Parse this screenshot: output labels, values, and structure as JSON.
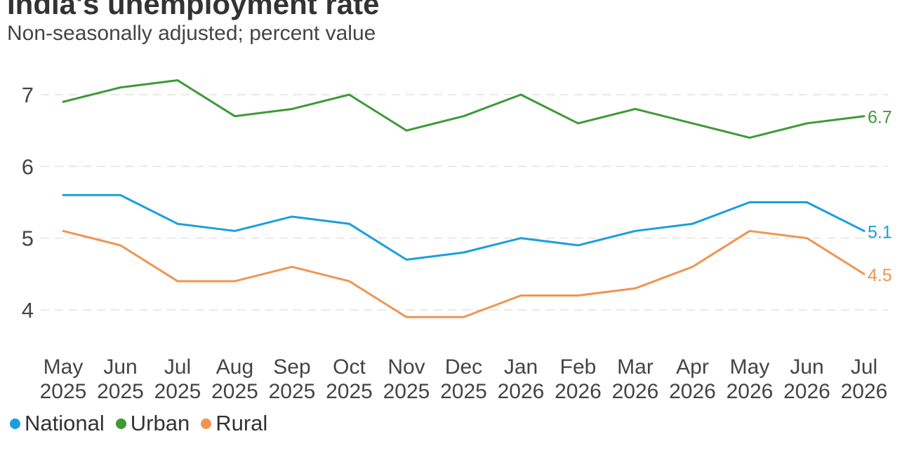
{
  "title": "India's unemployment rate",
  "subtitle": "Non-seasonally adjusted; percent value",
  "chart_data": {
    "type": "line",
    "categories": [
      [
        "May",
        "2025"
      ],
      [
        "Jun",
        "2025"
      ],
      [
        "Jul",
        "2025"
      ],
      [
        "Aug",
        "2025"
      ],
      [
        "Sep",
        "2025"
      ],
      [
        "Oct",
        "2025"
      ],
      [
        "Nov",
        "2025"
      ],
      [
        "Dec",
        "2025"
      ],
      [
        "Jan",
        "2026"
      ],
      [
        "Feb",
        "2026"
      ],
      [
        "Mar",
        "2026"
      ],
      [
        "Apr",
        "2026"
      ],
      [
        "May",
        "2026"
      ],
      [
        "Jun",
        "2026"
      ],
      [
        "Jul",
        "2026"
      ]
    ],
    "yticks": [
      4,
      5,
      6,
      7
    ],
    "ylim": [
      3.5,
      7.5
    ],
    "grid": "horizontal dashed",
    "legend_position": "bottom-left",
    "series": [
      {
        "name": "National",
        "color": "#1a9fde",
        "values": [
          5.6,
          5.6,
          5.2,
          5.1,
          5.3,
          5.2,
          4.7,
          4.8,
          5.0,
          4.9,
          5.1,
          5.2,
          5.5,
          5.5,
          5.1
        ],
        "end_label": "5.1"
      },
      {
        "name": "Urban",
        "color": "#3d9a35",
        "values": [
          6.9,
          7.1,
          7.2,
          6.7,
          6.8,
          7.0,
          6.5,
          6.7,
          7.0,
          6.6,
          6.8,
          6.6,
          6.4,
          6.6,
          6.7
        ],
        "end_label": "6.7"
      },
      {
        "name": "Rural",
        "color": "#ef9550",
        "values": [
          5.1,
          4.9,
          4.4,
          4.4,
          4.6,
          4.4,
          3.9,
          3.9,
          4.2,
          4.2,
          4.3,
          4.6,
          5.1,
          5.0,
          4.5
        ],
        "end_label": "4.5"
      }
    ]
  }
}
